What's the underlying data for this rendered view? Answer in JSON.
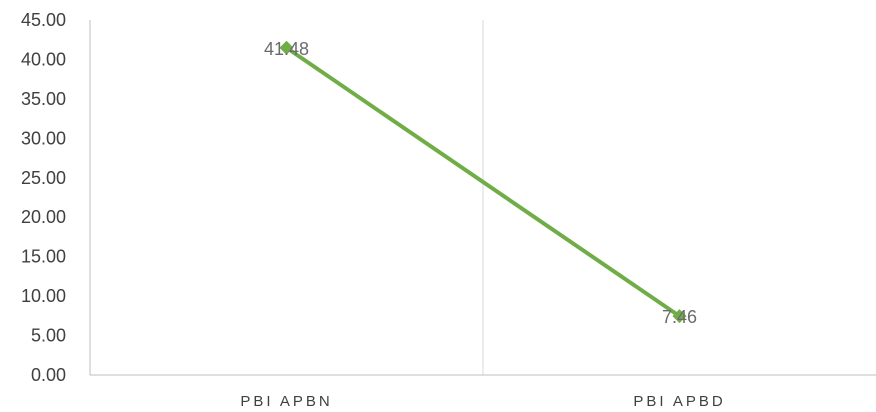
{
  "chart_data": {
    "type": "line",
    "title": "",
    "xlabel": "",
    "ylabel": "",
    "categories": [
      "PBI APBN",
      "PBI APBD"
    ],
    "series": [
      {
        "values": [
          41.48,
          7.46
        ],
        "data_labels": [
          "41.48",
          "7.46"
        ]
      }
    ],
    "ylim": [
      0,
      45
    ],
    "y_ticks": [
      0,
      5,
      10,
      15,
      20,
      25,
      30,
      35,
      40,
      45
    ],
    "y_tick_labels": [
      "0.00",
      "5.00",
      "10.00",
      "15.00",
      "20.00",
      "25.00",
      "30.00",
      "35.00",
      "40.00",
      "45.00"
    ],
    "grid": "vertical category separators",
    "legend": "none",
    "marker": "diamond",
    "colors": {
      "line": "#70ad47",
      "marker": "#70ad47",
      "axis": "#bfbfbf",
      "grid": "#d9d9d9"
    }
  }
}
